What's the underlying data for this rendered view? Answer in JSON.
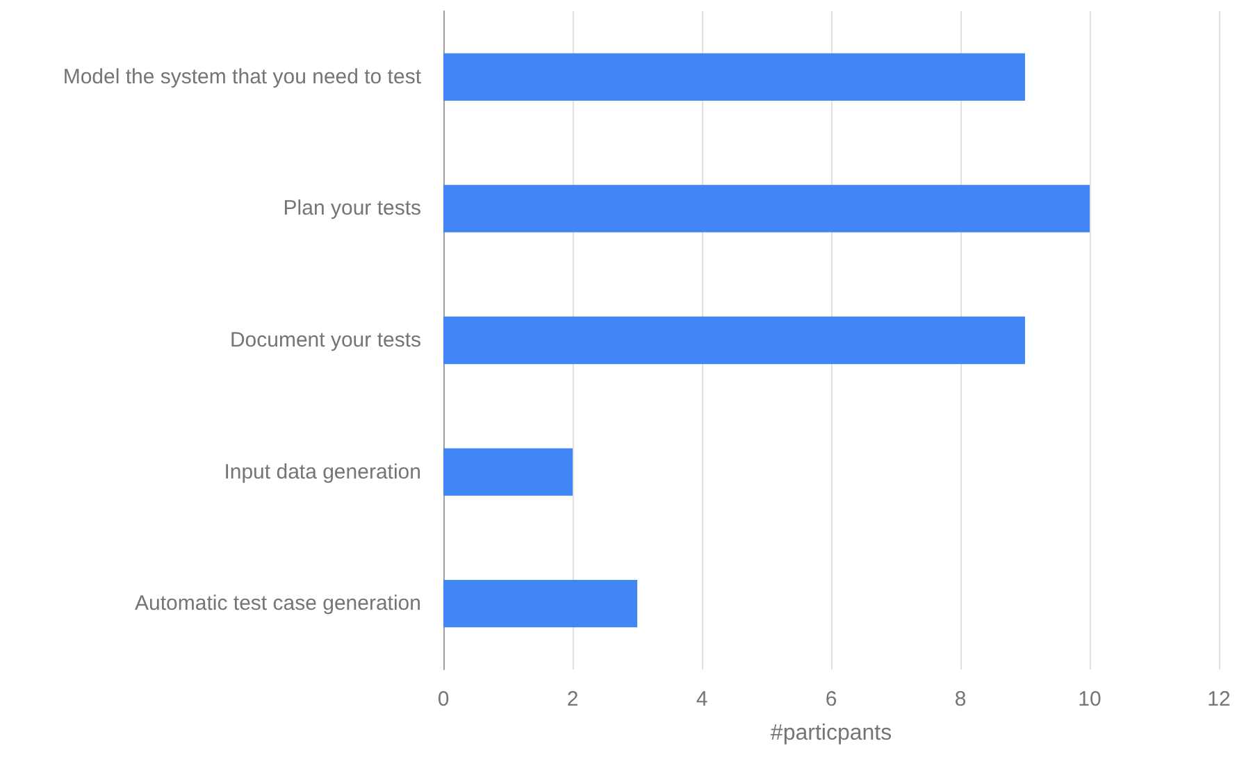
{
  "chart_data": {
    "type": "bar",
    "orientation": "horizontal",
    "xlabel": "#particpants",
    "categories": [
      "Model the system that you need to test",
      "Plan your tests",
      "Document your tests",
      "Input data generation",
      "Automatic test case generation"
    ],
    "values": [
      9,
      10,
      9,
      2,
      3
    ],
    "color": "#4285f4",
    "xlim": [
      0,
      12
    ],
    "xticks": [
      0,
      2,
      4,
      6,
      8,
      10,
      12
    ],
    "grid": "x"
  }
}
